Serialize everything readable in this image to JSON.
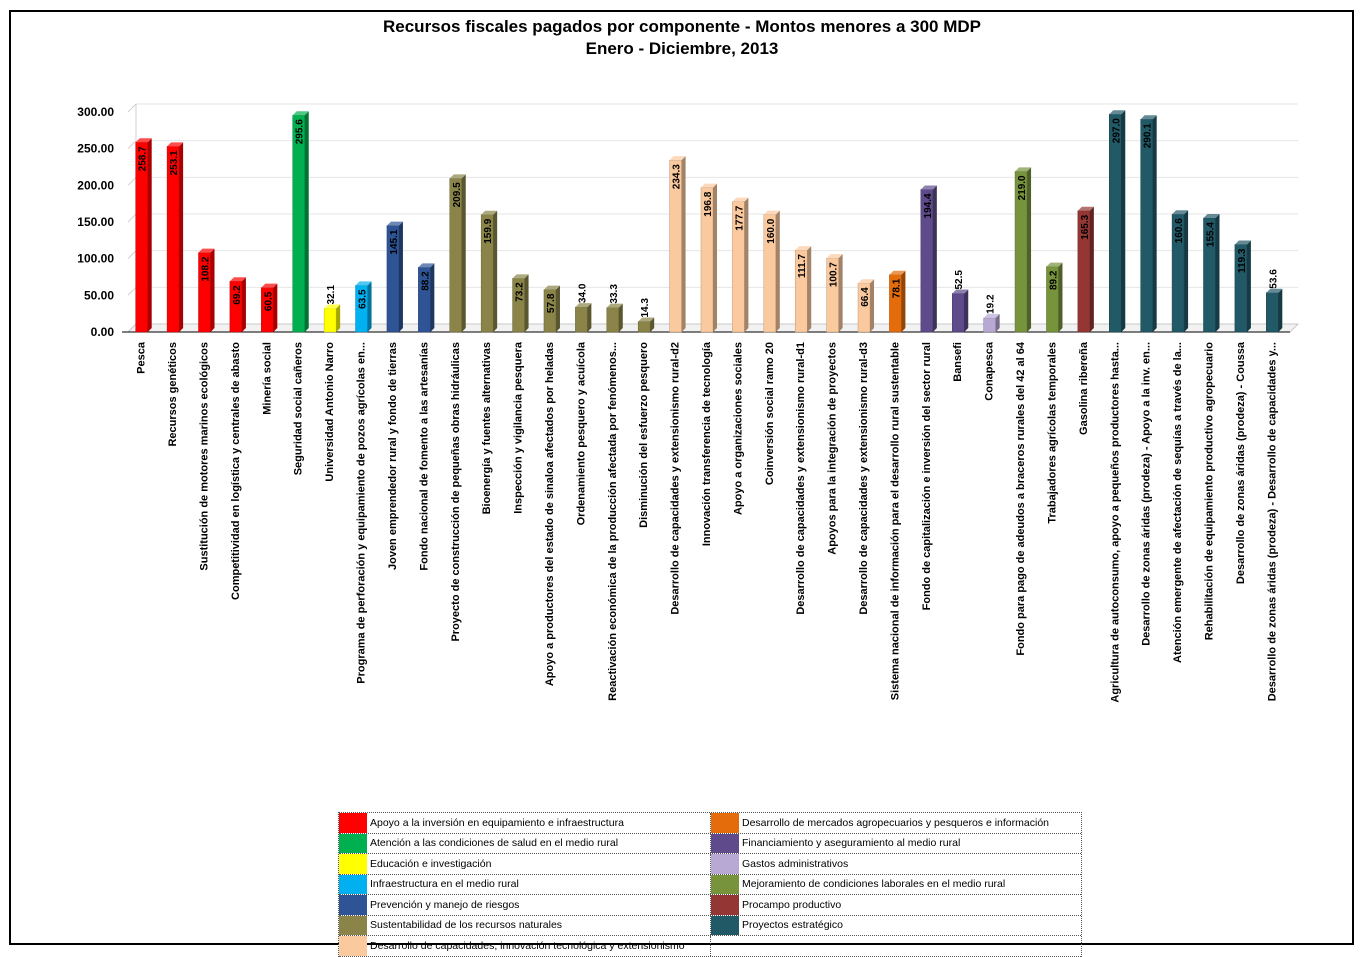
{
  "chart_data": {
    "type": "bar",
    "title": "Recursos fiscales pagados por componente - Montos menores a 300 MDP",
    "subtitle": "Enero - Diciembre, 2013",
    "ylim": [
      0,
      300
    ],
    "yticks": [
      "0.00",
      "50.00",
      "100.00",
      "150.00",
      "200.00",
      "250.00",
      "300.00"
    ],
    "grid": true,
    "bars": [
      {
        "label": "Pesca",
        "value": 258.7,
        "value_label": "258.7",
        "category": 0
      },
      {
        "label": "Recursos genéticos",
        "value": 253.1,
        "value_label": "253.1",
        "category": 0
      },
      {
        "label": "Sustitución de motores marinos ecológicos",
        "value": 108.2,
        "value_label": "108.2",
        "category": 0
      },
      {
        "label": "Competitividad en logística y centrales de abasto",
        "value": 69.2,
        "value_label": "69.2",
        "category": 0
      },
      {
        "label": "Minería social",
        "value": 60.5,
        "value_label": "60.5",
        "category": 0
      },
      {
        "label": "Seguridad social cañeros",
        "value": 295.6,
        "value_label": "295.6",
        "category": 1
      },
      {
        "label": "Universidad Antonio Narro",
        "value": 32.1,
        "value_label": "32.1",
        "category": 2
      },
      {
        "label": "Programa de perforación y equipamiento de pozos agrícolas en...",
        "value": 63.5,
        "value_label": "63.5",
        "category": 3
      },
      {
        "label": "Joven emprendedor rural y fondo de tierras",
        "value": 145.1,
        "value_label": "145.1",
        "category": 4
      },
      {
        "label": "Fondo nacional de fomento a las artesanías",
        "value": 88.2,
        "value_label": "88.2",
        "category": 4
      },
      {
        "label": "Proyecto de construcción de pequeñas obras hidráulicas",
        "value": 209.5,
        "value_label": "209.5",
        "category": 5
      },
      {
        "label": "Bioenergía y fuentes alternativas",
        "value": 159.9,
        "value_label": "159.9",
        "category": 5
      },
      {
        "label": "Inspección y vigilancia pesquera",
        "value": 73.2,
        "value_label": "73.2",
        "category": 5
      },
      {
        "label": "Apoyo a productores del estado de sinaloa afectados por heladas",
        "value": 57.8,
        "value_label": "57.8",
        "category": 5
      },
      {
        "label": "Ordenamiento pesquero y acuícola",
        "value": 34.0,
        "value_label": "34.0",
        "category": 5
      },
      {
        "label": "Reactivación económica de la producción afectada por fenómenos...",
        "value": 33.3,
        "value_label": "33.3",
        "category": 5
      },
      {
        "label": "Disminución del esfuerzo pesquero",
        "value": 14.3,
        "value_label": "14.3",
        "category": 5
      },
      {
        "label": "Desarrollo de capacidades y extensionismo rural-d2",
        "value": 234.3,
        "value_label": "234.3",
        "category": 6
      },
      {
        "label": "Innovación transferencia de tecnología",
        "value": 196.8,
        "value_label": "196.8",
        "category": 6
      },
      {
        "label": "Apoyo a organizaciones sociales",
        "value": 177.7,
        "value_label": "177.7",
        "category": 6
      },
      {
        "label": "Coinversión social ramo 20",
        "value": 160.0,
        "value_label": "160.0",
        "category": 6
      },
      {
        "label": "Desarrollo de capacidades y extensionismo rural-d1",
        "value": 111.7,
        "value_label": "111.7",
        "category": 6
      },
      {
        "label": "Apoyos para la integración de proyectos",
        "value": 100.7,
        "value_label": "100.7",
        "category": 6
      },
      {
        "label": "Desarrollo de capacidades y extensionismo rural-d3",
        "value": 66.4,
        "value_label": "66.4",
        "category": 6
      },
      {
        "label": "Sistema nacional de información para el desarrollo rural sustentable",
        "value": 78.1,
        "value_label": "78.1",
        "category": 7
      },
      {
        "label": "Fondo de capitalización e inversión del sector rural",
        "value": 194.4,
        "value_label": "194.4",
        "category": 8
      },
      {
        "label": "Bansefi",
        "value": 52.5,
        "value_label": "52.5",
        "category": 8
      },
      {
        "label": "Conapesca",
        "value": 19.2,
        "value_label": "19.2",
        "category": 9
      },
      {
        "label": "Fondo para pago de adeudos a braceros rurales del 42 al 64",
        "value": 219.0,
        "value_label": "219.0",
        "category": 10
      },
      {
        "label": "Trabajadores agrícolas temporales",
        "value": 89.2,
        "value_label": "89.2",
        "category": 10
      },
      {
        "label": "Gasolina ribereña",
        "value": 165.3,
        "value_label": "165.3",
        "category": 11
      },
      {
        "label": "Agricultura de autoconsumo, apoyo a pequeños productores hasta...",
        "value": 297.0,
        "value_label": "297.0",
        "category": 12
      },
      {
        "label": "Desarrollo de zonas áridas (prodeza) - Apoyo a la inv. en...",
        "value": 290.1,
        "value_label": "290.1",
        "category": 12
      },
      {
        "label": "Atención emergente de afectación de sequías a través de la...",
        "value": 160.6,
        "value_label": "160.6",
        "category": 12
      },
      {
        "label": "Rehabilitación de equipamiento productivo agropecuario",
        "value": 155.4,
        "value_label": "155.4",
        "category": 12
      },
      {
        "label": "Desarrollo de zonas áridas (prodeza) - Coussa",
        "value": 119.3,
        "value_label": "119.3",
        "category": 12
      },
      {
        "label": "Desarrollo de zonas áridas (prodeza) - Desarrollo de capacidades y...",
        "value": 53.6,
        "value_label": "53.6",
        "category": 12
      }
    ],
    "legend": [
      {
        "name": "Apoyo a la inversión en equipamiento e infraestructura",
        "color": "#ff0000"
      },
      {
        "name": "Atención a las condiciones de salud en el medio rural",
        "color": "#00b050"
      },
      {
        "name": "Educación e investigación",
        "color": "#ffff00"
      },
      {
        "name": "Infraestructura en el medio rural",
        "color": "#00b0f0"
      },
      {
        "name": "Prevención y manejo de riesgos",
        "color": "#2e5496"
      },
      {
        "name": "Sustentabilidad de los recursos naturales",
        "color": "#8a8448"
      },
      {
        "name": "Desarrollo de capacidades, innovación tecnológica y extensionismo",
        "color": "#fbc99e"
      },
      {
        "name": "Desarrollo de mercados agropecuarios y pesqueros e información",
        "color": "#e46c0a"
      },
      {
        "name": "Financiamiento y aseguramiento al medio rural",
        "color": "#5f4b8b"
      },
      {
        "name": "Gastos administrativos",
        "color": "#b7a8d4"
      },
      {
        "name": "Mejoramiento de condiciones laborales en el medio rural",
        "color": "#77933c"
      },
      {
        "name": "Procampo productivo",
        "color": "#943634"
      },
      {
        "name": "Proyectos estratégico",
        "color": "#215967"
      }
    ]
  }
}
